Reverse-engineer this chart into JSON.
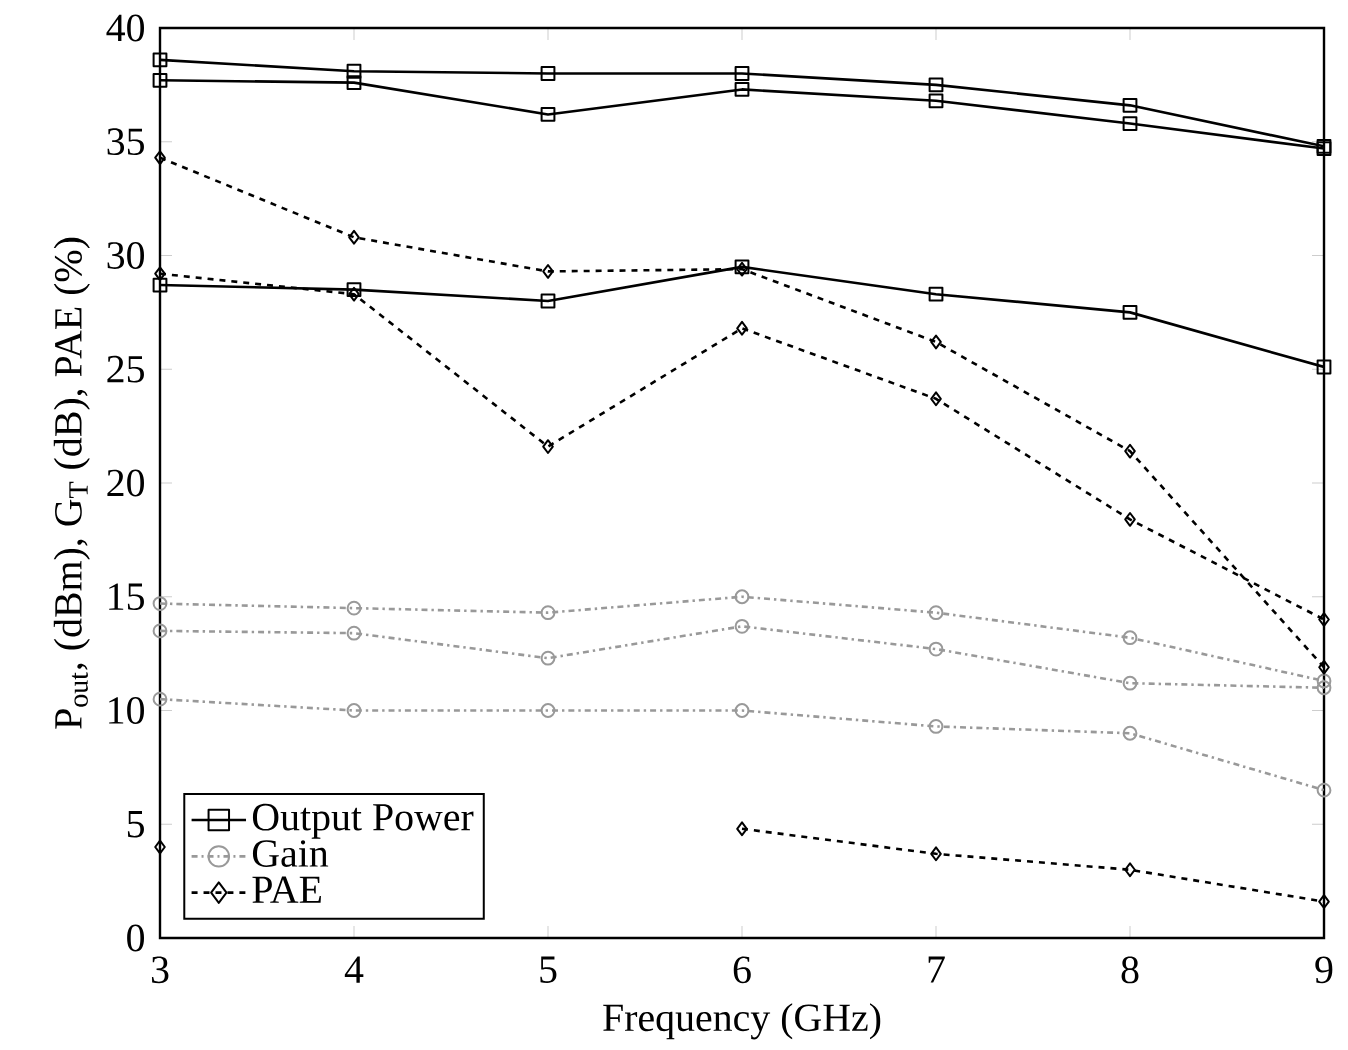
{
  "chart_data": {
    "type": "line",
    "xlabel": "Frequency (GHz)",
    "ylabel": "P$_{out}$, (dBm), G$_{T}$ (dB), PAE (%)",
    "x": [
      3,
      4,
      5,
      6,
      7,
      8,
      9
    ],
    "xlim": [
      3,
      9
    ],
    "ylim": [
      0,
      40
    ],
    "xticks": [
      3,
      4,
      5,
      6,
      7,
      8,
      9
    ],
    "yticks": [
      0,
      5,
      10,
      15,
      20,
      25,
      30,
      35,
      40
    ],
    "grid": false,
    "legend": "bottom left",
    "series": [
      {
        "name": "Output Power",
        "color": "#000000",
        "marker": "square",
        "line_style": "solid",
        "values": [
          38.6,
          38.1,
          38.0,
          38.0,
          37.5,
          36.6,
          34.8
        ]
      },
      {
        "color": "#000000",
        "marker": "square",
        "line_style": "solid",
        "values": [
          37.7,
          37.6,
          36.2,
          37.3,
          36.8,
          35.8,
          34.7
        ]
      },
      {
        "color": "#000000",
        "marker": "square",
        "line_style": "solid",
        "values": [
          28.7,
          28.5,
          28.0,
          29.5,
          28.3,
          27.5,
          25.1
        ]
      },
      {
        "name": "Gain",
        "color": "#999999",
        "marker": "circle",
        "line_style": "dashdot",
        "values": [
          14.7,
          14.5,
          14.3,
          15.0,
          14.3,
          13.2,
          11.3
        ]
      },
      {
        "color": "#999999",
        "marker": "circle",
        "line_style": "dashdot",
        "values": [
          13.5,
          13.4,
          12.3,
          13.7,
          12.7,
          11.2,
          11.0
        ]
      },
      {
        "color": "#999999",
        "marker": "circle",
        "line_style": "dashdot",
        "values": [
          10.5,
          10.0,
          10.0,
          10.0,
          9.3,
          9.0,
          6.5
        ]
      },
      {
        "name": "PAE",
        "color": "#000000",
        "marker": "diamond",
        "line_style": "dashed",
        "values": [
          34.3,
          30.8,
          29.3,
          29.4,
          26.2,
          21.4,
          11.9
        ]
      },
      {
        "color": "#000000",
        "marker": "diamond",
        "line_style": "dashed",
        "values": [
          29.2,
          28.3,
          21.6,
          26.8,
          23.7,
          18.4,
          14.0
        ]
      },
      {
        "color": "#000000",
        "marker": "diamond",
        "line_style": "dashed",
        "values": [
          4.0,
          null,
          null,
          4.8,
          3.7,
          3.0,
          1.6
        ]
      }
    ]
  }
}
